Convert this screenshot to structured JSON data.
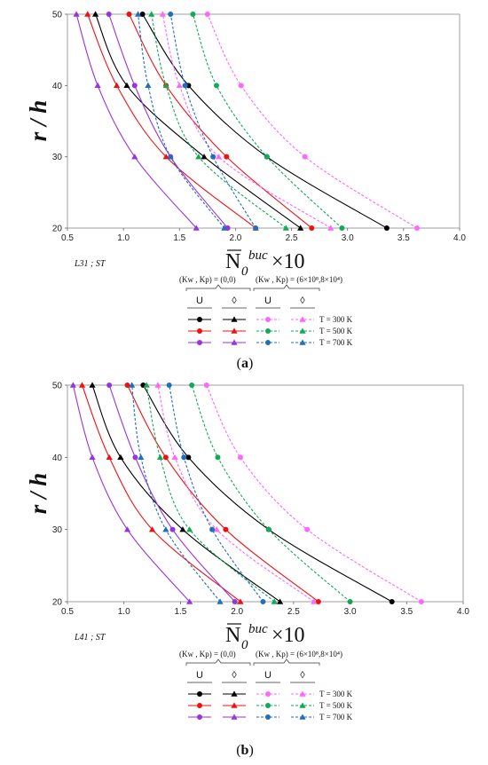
{
  "chart_data": [
    {
      "type": "line",
      "panel_label": "a",
      "ylabel": "r / h",
      "xlabel": {
        "base": "N",
        "sub": "0",
        "sup": "buc",
        "suffix": " ×10"
      },
      "note": "L31 ; ST",
      "xlim": [
        0.5,
        4.0
      ],
      "ylim": [
        20,
        50
      ],
      "xticks": [
        "0.5",
        "1.0",
        "1.5",
        "2.0",
        "2.5",
        "3.0",
        "3.5",
        "4.0"
      ],
      "yticks": [
        "20",
        "30",
        "40",
        "50"
      ],
      "y": [
        20,
        30,
        40,
        50
      ],
      "series": [
        {
          "foundation": "(0,0)",
          "profile": "U",
          "temperature": "300 K",
          "color": "#000000",
          "marker": "circle",
          "dash": false,
          "x": [
            3.35,
            2.28,
            1.58,
            1.17
          ]
        },
        {
          "foundation": "(0,0)",
          "profile": "◊",
          "temperature": "300 K",
          "color": "#000000",
          "marker": "triangle",
          "dash": false,
          "x": [
            2.58,
            1.72,
            1.03,
            0.75
          ]
        },
        {
          "foundation": "(0,0)",
          "profile": "U",
          "temperature": "500 K",
          "color": "#ee1111",
          "marker": "circle",
          "dash": false,
          "x": [
            2.68,
            1.92,
            1.38,
            1.05
          ]
        },
        {
          "foundation": "(0,0)",
          "profile": "◊",
          "temperature": "500 K",
          "color": "#ee1111",
          "marker": "triangle",
          "dash": false,
          "x": [
            2.18,
            1.38,
            0.94,
            0.68
          ]
        },
        {
          "foundation": "(0,0)",
          "profile": "U",
          "temperature": "700 K",
          "color": "#9933dd",
          "marker": "circle",
          "dash": false,
          "x": [
            1.93,
            1.42,
            1.1,
            0.87
          ]
        },
        {
          "foundation": "(0,0)",
          "profile": "◊",
          "temperature": "700 K",
          "color": "#9933dd",
          "marker": "triangle",
          "dash": false,
          "x": [
            1.65,
            1.1,
            0.77,
            0.58
          ]
        },
        {
          "foundation": "(6×10⁸,8×10⁴)",
          "profile": "U",
          "temperature": "300 K",
          "color": "#ff66ff",
          "marker": "circle",
          "dash": true,
          "x": [
            3.62,
            2.62,
            2.05,
            1.75
          ]
        },
        {
          "foundation": "(6×10⁸,8×10⁴)",
          "profile": "◊",
          "temperature": "300 K",
          "color": "#ff66ff",
          "marker": "triangle",
          "dash": true,
          "x": [
            2.85,
            1.85,
            1.5,
            1.35
          ]
        },
        {
          "foundation": "(6×10⁸,8×10⁴)",
          "profile": "U",
          "temperature": "500 K",
          "color": "#11aa55",
          "marker": "circle",
          "dash": true,
          "x": [
            2.95,
            2.28,
            1.83,
            1.62
          ]
        },
        {
          "foundation": "(6×10⁸,8×10⁴)",
          "profile": "◊",
          "temperature": "500 K",
          "color": "#11aa55",
          "marker": "triangle",
          "dash": true,
          "x": [
            2.45,
            1.67,
            1.38,
            1.25
          ]
        },
        {
          "foundation": "(6×10⁸,8×10⁴)",
          "profile": "U",
          "temperature": "700 K",
          "color": "#1f6fbf",
          "marker": "circle",
          "dash": true,
          "x": [
            2.18,
            1.8,
            1.55,
            1.42
          ]
        },
        {
          "foundation": "(6×10⁸,8×10⁴)",
          "profile": "◊",
          "temperature": "700 K",
          "color": "#1f6fbf",
          "marker": "triangle",
          "dash": true,
          "x": [
            1.9,
            1.42,
            1.22,
            1.13
          ]
        }
      ]
    },
    {
      "type": "line",
      "panel_label": "b",
      "ylabel": "r / h",
      "xlabel": {
        "base": "N",
        "sub": "0",
        "sup": "buc",
        "suffix": " ×10"
      },
      "note": "L41 ; ST",
      "xlim": [
        0.5,
        4.0
      ],
      "ylim": [
        20,
        50
      ],
      "xticks": [
        "0.5",
        "1.0",
        "1.5",
        "2.0",
        "2.5",
        "3.0",
        "3.5",
        "4.0"
      ],
      "yticks": [
        "20",
        "30",
        "40",
        "50"
      ],
      "y": [
        20,
        30,
        40,
        50
      ],
      "series": [
        {
          "foundation": "(0,0)",
          "profile": "U",
          "temperature": "300 K",
          "color": "#000000",
          "marker": "circle",
          "dash": false,
          "x": [
            3.37,
            2.28,
            1.57,
            1.17
          ]
        },
        {
          "foundation": "(0,0)",
          "profile": "◊",
          "temperature": "300 K",
          "color": "#000000",
          "marker": "triangle",
          "dash": false,
          "x": [
            2.38,
            1.52,
            0.97,
            0.72
          ]
        },
        {
          "foundation": "(0,0)",
          "profile": "U",
          "temperature": "500 K",
          "color": "#ee1111",
          "marker": "circle",
          "dash": false,
          "x": [
            2.72,
            1.9,
            1.37,
            1.03
          ]
        },
        {
          "foundation": "(0,0)",
          "profile": "◊",
          "temperature": "500 K",
          "color": "#ee1111",
          "marker": "triangle",
          "dash": false,
          "x": [
            2.03,
            1.25,
            0.87,
            0.63
          ]
        },
        {
          "foundation": "(0,0)",
          "profile": "U",
          "temperature": "700 K",
          "color": "#9933dd",
          "marker": "circle",
          "dash": false,
          "x": [
            1.98,
            1.43,
            1.1,
            0.87
          ]
        },
        {
          "foundation": "(0,0)",
          "profile": "◊",
          "temperature": "700 K",
          "color": "#9933dd",
          "marker": "triangle",
          "dash": false,
          "x": [
            1.58,
            1.03,
            0.72,
            0.55
          ]
        },
        {
          "foundation": "(6×10⁸,8×10⁴)",
          "profile": "U",
          "temperature": "300 K",
          "color": "#ff66ff",
          "marker": "circle",
          "dash": true,
          "x": [
            3.63,
            2.62,
            2.03,
            1.73
          ]
        },
        {
          "foundation": "(6×10⁸,8×10⁴)",
          "profile": "◊",
          "temperature": "300 K",
          "color": "#ff66ff",
          "marker": "triangle",
          "dash": true,
          "x": [
            2.68,
            1.82,
            1.45,
            1.3
          ]
        },
        {
          "foundation": "(6×10⁸,8×10⁴)",
          "profile": "U",
          "temperature": "500 K",
          "color": "#11aa55",
          "marker": "circle",
          "dash": true,
          "x": [
            3.0,
            2.28,
            1.83,
            1.6
          ]
        },
        {
          "foundation": "(6×10⁸,8×10⁴)",
          "profile": "◊",
          "temperature": "500 K",
          "color": "#11aa55",
          "marker": "triangle",
          "dash": true,
          "x": [
            2.33,
            1.58,
            1.32,
            1.2
          ]
        },
        {
          "foundation": "(6×10⁸,8×10⁴)",
          "profile": "U",
          "temperature": "700 K",
          "color": "#1f6fbf",
          "marker": "circle",
          "dash": true,
          "x": [
            2.23,
            1.78,
            1.53,
            1.4
          ]
        },
        {
          "foundation": "(6×10⁸,8×10⁴)",
          "profile": "◊",
          "temperature": "700 K",
          "color": "#1f6fbf",
          "marker": "triangle",
          "dash": true,
          "x": [
            1.85,
            1.37,
            1.15,
            1.07
          ]
        }
      ]
    }
  ],
  "legend": {
    "group1": "(Kw , Kp) = (0,0)",
    "group2": "(Kw , Kp) = (6×10⁸,8×10⁴)",
    "headers": [
      "U",
      "◊",
      "U",
      "◊"
    ],
    "rows": [
      "T = 300 K",
      "T = 500 K",
      "T = 700 K"
    ]
  }
}
